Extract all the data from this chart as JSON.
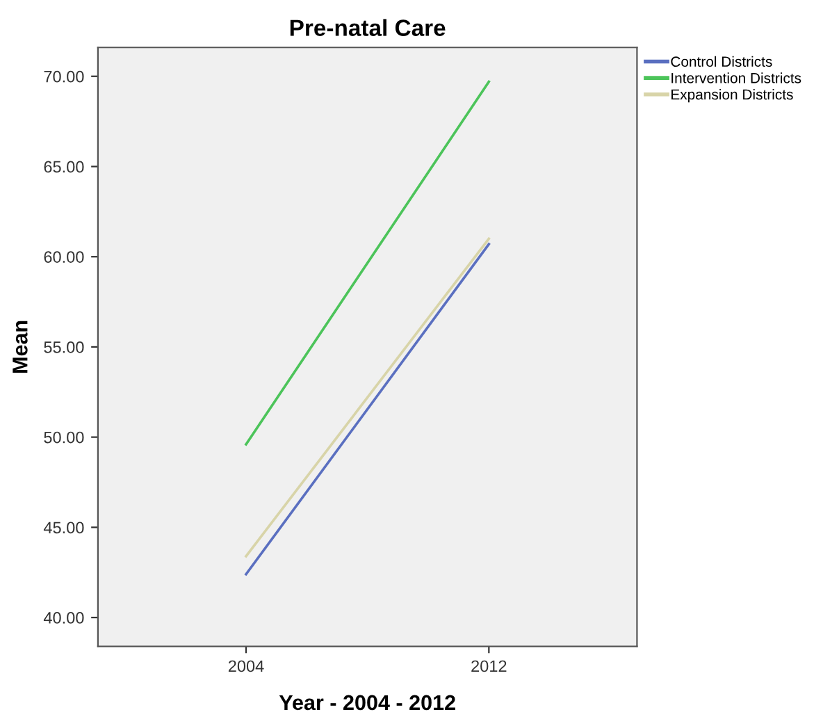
{
  "chart_data": {
    "type": "line",
    "title": "Pre-natal Care",
    "xlabel": "Year - 2004 - 2012",
    "ylabel": "Mean",
    "categories": [
      "2004",
      "2012"
    ],
    "series": [
      {
        "name": "Control Districts",
        "color": "#5a6fc0",
        "values": [
          42.4,
          60.7
        ]
      },
      {
        "name": "Intervention Districts",
        "color": "#4cc45a",
        "values": [
          49.6,
          69.7
        ]
      },
      {
        "name": "Expansion Districts",
        "color": "#d8d4a8",
        "values": [
          43.4,
          61.0
        ]
      }
    ],
    "ylim": [
      38.4,
      71.6
    ],
    "yticks": [
      {
        "value": 40,
        "label": "40.00"
      },
      {
        "value": 45,
        "label": "45.00"
      },
      {
        "value": 50,
        "label": "50.00"
      },
      {
        "value": 55,
        "label": "55.00"
      },
      {
        "value": 60,
        "label": "60.00"
      },
      {
        "value": 65,
        "label": "65.00"
      },
      {
        "value": 70,
        "label": "70.00"
      }
    ],
    "grid": false,
    "legend": "top right",
    "marker": "none",
    "line_style": "solid"
  }
}
